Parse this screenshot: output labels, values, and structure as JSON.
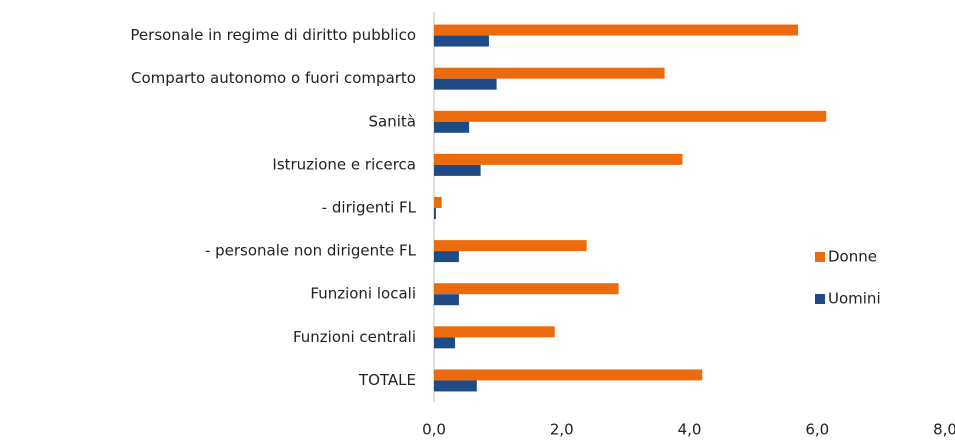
{
  "chart_data": {
    "type": "hbar",
    "categories": [
      "Personale in regime di diritto pubblico",
      "Comparto autonomo o fuori comparto",
      "Sanità",
      "Istruzione e ricerca",
      "- dirigenti FL",
      "- personale non dirigente FL",
      "Funzioni locali",
      "Funzioni centrali",
      "TOTALE"
    ],
    "series": [
      {
        "name": "Donne",
        "color": "#ec6c0d",
        "values": [
          5.7,
          3.61,
          6.14,
          3.89,
          0.12,
          2.39,
          2.89,
          1.89,
          4.2
        ]
      },
      {
        "name": "Uomini",
        "color": "#1e4b86",
        "values": [
          0.86,
          0.98,
          0.55,
          0.73,
          0.03,
          0.39,
          0.39,
          0.33,
          0.67
        ]
      }
    ],
    "xlim": [
      0,
      8
    ],
    "xticks": [
      {
        "value": 0,
        "label": "0,0"
      },
      {
        "value": 2,
        "label": "2,0"
      },
      {
        "value": 4,
        "label": "4,0"
      },
      {
        "value": 6,
        "label": "6,0"
      },
      {
        "value": 8,
        "label": "8,0"
      }
    ],
    "grid": false,
    "legend": "right"
  }
}
